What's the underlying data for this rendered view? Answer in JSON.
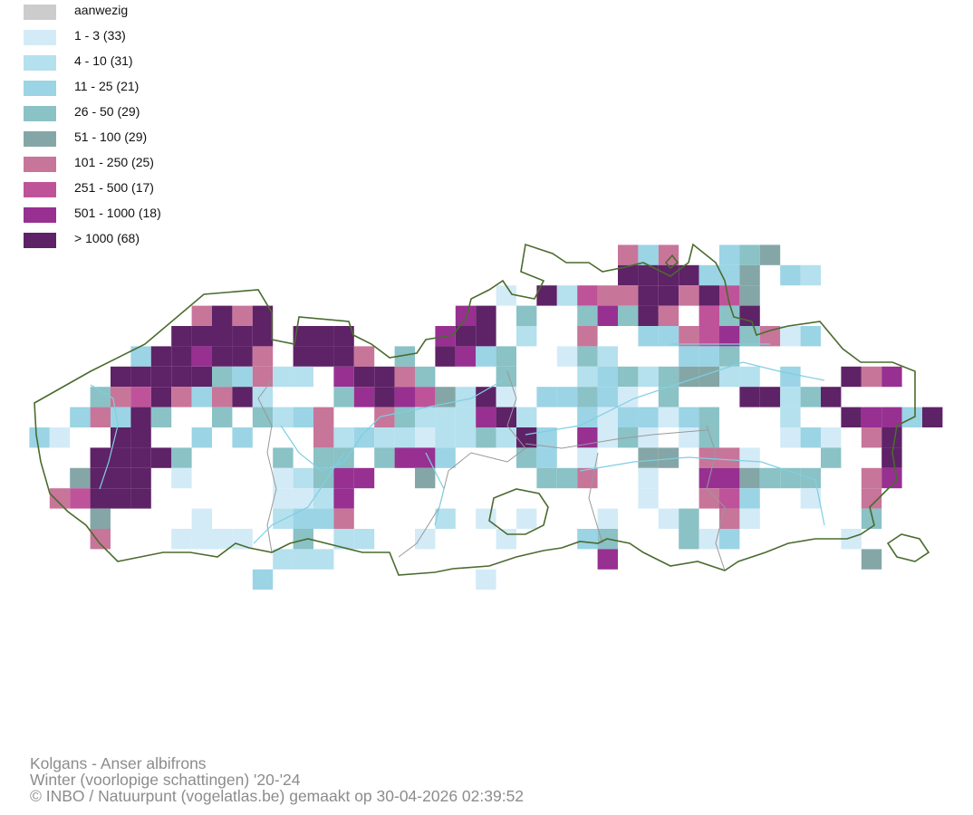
{
  "legend": {
    "items": [
      {
        "label": "aanwezig",
        "color": "#cccccc"
      },
      {
        "label": "1 - 3 (33)",
        "color": "#d3ebf7"
      },
      {
        "label": "4 - 10 (31)",
        "color": "#b5e0ee"
      },
      {
        "label": "11 - 25 (21)",
        "color": "#9bd4e5"
      },
      {
        "label": "26 - 50 (29)",
        "color": "#8ac2c6"
      },
      {
        "label": "51 - 100 (29)",
        "color": "#85a6a6"
      },
      {
        "label": "101 - 250 (25)",
        "color": "#c8759a"
      },
      {
        "label": "251 - 500 (17)",
        "color": "#bf539a"
      },
      {
        "label": "501 - 1000 (18)",
        "color": "#973091"
      },
      {
        "label": "> 1000 (68)",
        "color": "#5e2266"
      }
    ]
  },
  "map": {
    "border_color": "#4a6b2e",
    "river_color": "#7ecfe3",
    "province_line_color": "#999999"
  },
  "credits": {
    "species": "Kolgans - Anser albifrons",
    "season": "Winter (voorlopige schattingen) '20-'24",
    "copyright": "© INBO / Natuurpunt (vogelatlas.be) gemaakt op 30-04-2026 02:39:52"
  }
}
